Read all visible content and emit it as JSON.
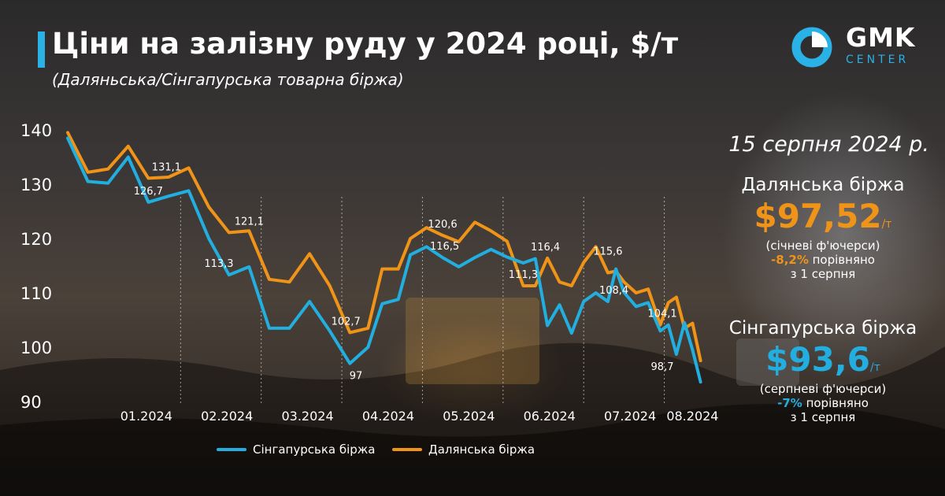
{
  "header": {
    "title": "Ціни на залізну руду у 2024 році, $/т",
    "subtitle": "(Даляньська/Сінгапурська товарна біржа)"
  },
  "logo": {
    "line1": "GMK",
    "line2": "CENTER"
  },
  "colors": {
    "singapore": "#22aedf",
    "dalian": "#ef9418",
    "accent": "#2ab1e6",
    "green": "#2ab1e6"
  },
  "side": {
    "date": "15 серпня 2024 р.",
    "dalian": {
      "name": "Далянська біржа",
      "price": "$97,52",
      "unit": "/т",
      "contract": "(січневі ф'ючерси)",
      "change": "-8,2%",
      "change_text": " порівняно",
      "ref": "з 1 серпня"
    },
    "singapore": {
      "name": "Сінгапурська біржа",
      "price": "$93,6",
      "unit": "/т",
      "contract": "(серпневі ф'ючерси)",
      "change": "-7%",
      "change_text": " порівняно",
      "ref": "з 1 серпня"
    }
  },
  "chart_data": {
    "type": "line",
    "ylim": [
      90,
      140
    ],
    "yticks": [
      90,
      100,
      110,
      120,
      130,
      140
    ],
    "xlim": [
      0,
      32
    ],
    "month_labels": [
      "01.2024",
      "02.2024",
      "03.2024",
      "04.2024",
      "05.2024",
      "06.2024",
      "07.2024",
      "08.2024"
    ],
    "month_label_pos": [
      3.9,
      7.9,
      11.9,
      15.9,
      19.9,
      23.9,
      27.9,
      31.0
    ],
    "month_dividers": [
      5.6,
      9.6,
      13.6,
      17.6,
      21.6,
      25.6,
      29.6
    ],
    "series": [
      {
        "name": "Сінгапурська біржа",
        "color": "#22aedf",
        "x": [
          0,
          1,
          2,
          3,
          4,
          5,
          6,
          7,
          8,
          9,
          10,
          11,
          12,
          13,
          14,
          14.9,
          15.6,
          16.4,
          17,
          17.8,
          18.6,
          19.4,
          20.2,
          21,
          21.8,
          22.6,
          23.2,
          23.8,
          24.4,
          25,
          25.6,
          26.2,
          26.8,
          27.2,
          27.6,
          28.2,
          28.8,
          29.4,
          29.8,
          30.2,
          30.6,
          31,
          31.4
        ],
        "values": [
          138.5,
          130.5,
          130.2,
          135,
          126.7,
          127.8,
          128.8,
          120,
          113.3,
          114.8,
          103.5,
          103.5,
          108.4,
          103,
          97,
          100,
          108,
          108.8,
          117,
          118.5,
          116.5,
          114.8,
          116.5,
          118,
          116.6,
          115.5,
          116.3,
          104,
          107.8,
          102.6,
          108.4,
          110,
          108.4,
          114.4,
          110.1,
          107.5,
          108.2,
          103,
          104.1,
          98.7,
          104.5,
          99.5,
          93.6
        ]
      },
      {
        "name": "Далянська біржа",
        "color": "#ef9418",
        "x": [
          0,
          1,
          2,
          3,
          4,
          5,
          6,
          7,
          8,
          9,
          10,
          11,
          12,
          13,
          14,
          14.9,
          15.6,
          16.4,
          17,
          17.8,
          18.6,
          19.4,
          20.2,
          21,
          21.8,
          22.6,
          23.2,
          23.8,
          24.4,
          25,
          25.6,
          26.2,
          26.8,
          27.2,
          27.6,
          28.2,
          28.8,
          29.4,
          29.8,
          30.2,
          30.6,
          31,
          31.4
        ],
        "values": [
          139.5,
          132.2,
          132.8,
          137,
          131.1,
          131.3,
          133,
          125.8,
          121.1,
          121.4,
          112.5,
          112,
          117.2,
          111.3,
          102.7,
          103.5,
          114.4,
          114.4,
          120,
          122,
          120.6,
          119.4,
          123,
          121.4,
          119.5,
          111.3,
          111.3,
          116.4,
          112,
          111.3,
          115.6,
          118.5,
          113.7,
          114,
          112,
          110,
          110.7,
          104.1,
          108.2,
          109.2,
          103.5,
          104.4,
          97.52
        ]
      }
    ],
    "annotations": [
      {
        "text": "126,7",
        "x": 4.0,
        "y": 126.7
      },
      {
        "text": "131,1",
        "x": 4.9,
        "y": 131.1
      },
      {
        "text": "113,3",
        "x": 7.5,
        "y": 113.3
      },
      {
        "text": "121,1",
        "x": 9.0,
        "y": 121.1
      },
      {
        "text": "102,7",
        "x": 13.8,
        "y": 102.7
      },
      {
        "text": "97",
        "x": 14.3,
        "y": 97
      },
      {
        "text": "120,6",
        "x": 18.6,
        "y": 120.6
      },
      {
        "text": "116,5",
        "x": 18.7,
        "y": 116.5
      },
      {
        "text": "111,3",
        "x": 22.6,
        "y": 111.3
      },
      {
        "text": "116,4",
        "x": 23.7,
        "y": 116.4
      },
      {
        "text": "115,6",
        "x": 26.8,
        "y": 115.6
      },
      {
        "text": "108,4",
        "x": 27.1,
        "y": 108.4
      },
      {
        "text": "104,1",
        "x": 29.5,
        "y": 104.1
      },
      {
        "text": "98,7",
        "x": 29.5,
        "y": 98.7
      }
    ],
    "legend": {
      "placement": "bottom-center",
      "items": [
        {
          "label": "Сінгапурська біржа",
          "color": "#22aedf"
        },
        {
          "label": "Далянська біржа",
          "color": "#ef9418"
        }
      ]
    }
  }
}
